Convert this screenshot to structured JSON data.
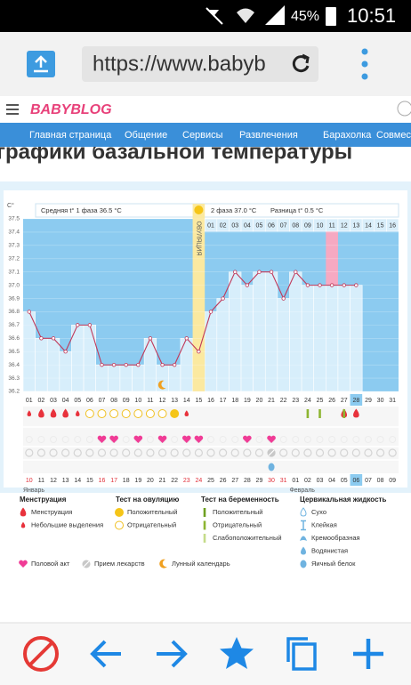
{
  "status_bar": {
    "battery": "45%",
    "time": "10:51"
  },
  "browser": {
    "url": "https://www.babyb"
  },
  "site": {
    "logo": "BABYBLOG",
    "nav": [
      "Главная страница",
      "Общение",
      "Сервисы",
      "Развлечения",
      "Барахолка",
      "Совмест"
    ]
  },
  "page_title": "графики базальной температуры",
  "chart_data": {
    "type": "line",
    "y_label": "C°",
    "phase1_label": "Средняя t° 1 фаза 36.5 °C",
    "phase2_label": "2 фаза 37.0 °C",
    "difference_label": "Разница t° 0.5 °C",
    "ovulation_label": "ОВУЛЯЦИЯ",
    "categories": [
      "01",
      "02",
      "03",
      "04",
      "05",
      "06",
      "07",
      "08",
      "09",
      "10",
      "11",
      "12",
      "13",
      "14",
      "15",
      "16",
      "17",
      "18",
      "19",
      "20",
      "21",
      "22",
      "23",
      "24",
      "25",
      "26",
      "27",
      "28",
      "29",
      "30",
      "31"
    ],
    "dates": [
      "10",
      "11",
      "12",
      "13",
      "14",
      "15",
      "16",
      "17",
      "18",
      "19",
      "20",
      "21",
      "22",
      "23",
      "24",
      "25",
      "26",
      "27",
      "28",
      "29",
      "30",
      "31",
      "01",
      "02",
      "03",
      "04",
      "05",
      "06",
      "07",
      "08",
      "09"
    ],
    "weekend_dates": [
      "10",
      "16",
      "17",
      "23",
      "24",
      "30",
      "31"
    ],
    "months": [
      "Январь",
      "Февраль"
    ],
    "luteal_days": [
      "01",
      "02",
      "03",
      "04",
      "05",
      "06",
      "07",
      "08",
      "09",
      "10",
      "11",
      "12",
      "13",
      "14",
      "15",
      "16"
    ],
    "values": [
      36.8,
      36.6,
      36.6,
      36.5,
      36.7,
      36.7,
      36.4,
      36.4,
      36.4,
      36.4,
      36.6,
      36.4,
      36.4,
      36.6,
      36.5,
      36.8,
      36.9,
      37.1,
      37.0,
      37.1,
      37.1,
      36.9,
      37.1,
      37.0,
      37.0,
      37.0,
      37.0,
      37.0,
      null,
      null,
      null
    ],
    "ylim": [
      36.2,
      37.5
    ],
    "yticks": [
      36.2,
      36.3,
      36.4,
      36.5,
      36.6,
      36.7,
      36.8,
      36.9,
      {
        "value": 37,
        "label": "37.0"
      },
      37.1,
      37.2,
      37.3,
      37.4,
      37.5
    ],
    "ovulation_day": "15",
    "marked_day": "26",
    "today": "28",
    "color": "#c0395a",
    "bg_color": "#8ccbf0",
    "bar_color": "#d7eefb"
  },
  "legend": [
    {
      "title": "Менструация",
      "items": [
        {
          "label": "Менструация",
          "days": [
            "02",
            "03",
            "04",
            "27",
            "28"
          ]
        },
        {
          "label": "Небольшие выделения",
          "days": [
            "01",
            "05",
            "14"
          ]
        }
      ]
    },
    {
      "title": "Тест на овуляцию",
      "items": [
        {
          "label": "Положительный",
          "days": [
            "13"
          ]
        },
        {
          "label": "Отрицательный",
          "days": [
            "06",
            "07",
            "08",
            "09",
            "10",
            "11",
            "12"
          ]
        }
      ]
    },
    {
      "title": "Тест на беременность",
      "items": [
        {
          "label": "Положительный",
          "days": []
        },
        {
          "label": "Отрицательный",
          "days": [
            "24",
            "25",
            "27"
          ]
        },
        {
          "label": "Слабоположительный",
          "days": []
        }
      ]
    },
    {
      "title": "Цервикальная жидкость",
      "items": [
        {
          "label": "Сухо",
          "days": []
        },
        {
          "label": "Клейкая",
          "days": []
        },
        {
          "label": "Кремообразная",
          "days": []
        },
        {
          "label": "Водянистая",
          "days": []
        },
        {
          "label": "Яичный белок",
          "days": [
            "21"
          ]
        }
      ]
    },
    {
      "items": [
        {
          "label": "Половой акт",
          "days": [
            "07",
            "08",
            "10",
            "12",
            "14",
            "15",
            "19",
            "21"
          ]
        },
        {
          "label": "Прием лекарств",
          "days": [
            "21"
          ]
        },
        {
          "label": "Лунный календарь",
          "days": [
            "12"
          ]
        }
      ]
    }
  ]
}
